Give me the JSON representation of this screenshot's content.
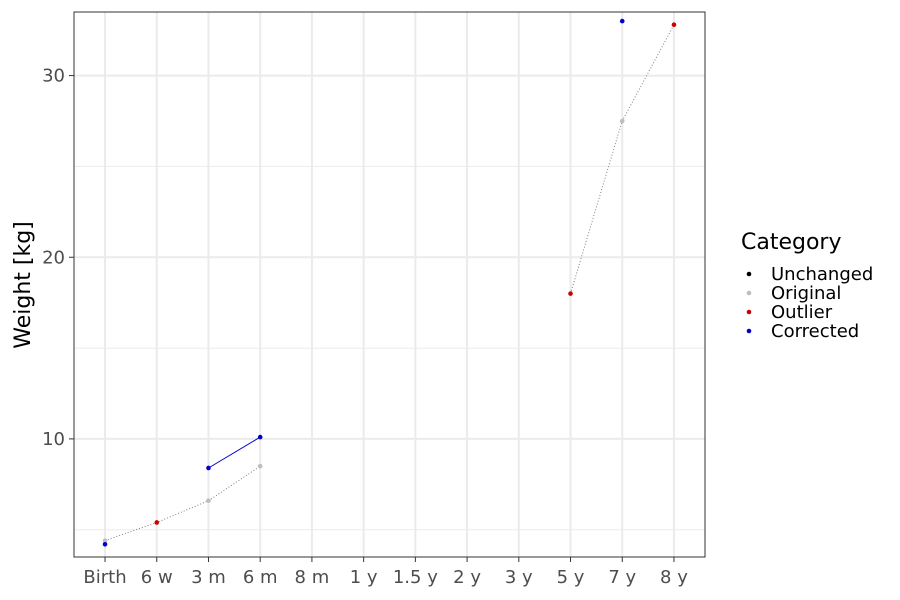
{
  "chart_data": {
    "type": "line",
    "title": "",
    "xlabel": "",
    "ylabel": "Weight [kg]",
    "x_categories": [
      "Birth",
      "6 w",
      "3 m",
      "6 m",
      "8 m",
      "1 y",
      "1.5 y",
      "2 y",
      "3 y",
      "5 y",
      "7 y",
      "8 y"
    ],
    "ylim": [
      3.5,
      33.5
    ],
    "y_ticks": [
      10,
      20,
      30
    ],
    "grid": true,
    "legend": {
      "title": "Category",
      "placement": "right",
      "entries": [
        {
          "name": "Unchanged",
          "color": "#000000"
        },
        {
          "name": "Original",
          "color": "#bebebe"
        },
        {
          "name": "Outlier",
          "color": "#cc0000"
        },
        {
          "name": "Corrected",
          "color": "#0000cc"
        }
      ]
    },
    "points": [
      {
        "x": "Birth",
        "y": 4.4,
        "category": "Original"
      },
      {
        "x": "Birth",
        "y": 4.2,
        "category": "Corrected"
      },
      {
        "x": "6 w",
        "y": 5.4,
        "category": "Outlier"
      },
      {
        "x": "3 m",
        "y": 6.6,
        "category": "Original"
      },
      {
        "x": "3 m",
        "y": 8.4,
        "category": "Corrected"
      },
      {
        "x": "6 m",
        "y": 8.5,
        "category": "Original"
      },
      {
        "x": "6 m",
        "y": 10.1,
        "category": "Corrected"
      },
      {
        "x": "5 y",
        "y": 18.0,
        "category": "Outlier"
      },
      {
        "x": "7 y",
        "y": 27.5,
        "category": "Original"
      },
      {
        "x": "7 y",
        "y": 33.0,
        "category": "Corrected"
      },
      {
        "x": "8 y",
        "y": 32.8,
        "category": "Outlier"
      }
    ],
    "lines": [
      {
        "style": "dotted",
        "color": "#7f7f7f",
        "points": [
          [
            "Birth",
            4.4
          ],
          [
            "6 w",
            5.4
          ],
          [
            "3 m",
            6.6
          ],
          [
            "6 m",
            8.5
          ]
        ]
      },
      {
        "style": "solid",
        "color": "#0000cc",
        "points": [
          [
            "3 m",
            8.4
          ],
          [
            "6 m",
            10.1
          ]
        ]
      },
      {
        "style": "dotted",
        "color": "#7f7f7f",
        "points": [
          [
            "5 y",
            18.0
          ],
          [
            "7 y",
            27.5
          ],
          [
            "8 y",
            32.8
          ]
        ]
      }
    ]
  }
}
